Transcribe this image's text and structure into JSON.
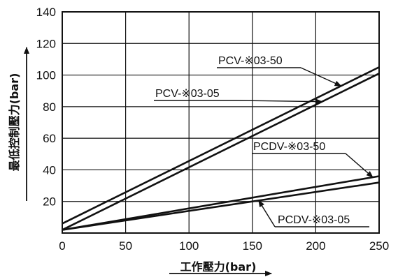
{
  "chart_data": {
    "type": "line",
    "xlabel": "工作壓力(bar)",
    "ylabel": "最低控制壓力(bar)",
    "xlim": [
      0,
      250
    ],
    "ylim": [
      0,
      140
    ],
    "x_ticks": [
      "0",
      "50",
      "100",
      "150",
      "200",
      "250"
    ],
    "y_ticks": [
      "20",
      "40",
      "60",
      "80",
      "100",
      "120",
      "140"
    ],
    "grid": true,
    "series": [
      {
        "name": "PCV-※03-50",
        "x": [
          0,
          250
        ],
        "y": [
          6,
          105
        ]
      },
      {
        "name": "PCV-※03-05",
        "x": [
          0,
          250
        ],
        "y": [
          2,
          101
        ]
      },
      {
        "name": "PCDV-※03-50",
        "x": [
          0,
          250
        ],
        "y": [
          2,
          36
        ]
      },
      {
        "name": "PCDV-※03-05",
        "x": [
          0,
          250
        ],
        "y": [
          2,
          32
        ]
      }
    ]
  }
}
